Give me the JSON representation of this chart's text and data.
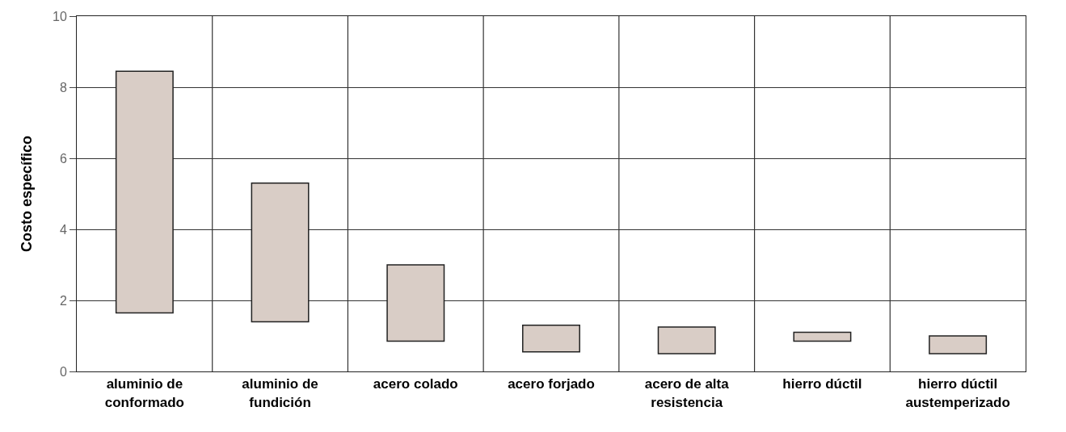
{
  "chart_data": {
    "type": "bar",
    "ylabel": "Costo específico",
    "categories": [
      "aluminio de\nconformado",
      "aluminio de\nfundición",
      "acero colado",
      "acero forjado",
      "acero de alta\nresistencia",
      "hierro dúctil",
      "hierro dúctil\naustemperizado"
    ],
    "base": [
      1.65,
      1.4,
      0.85,
      0.55,
      0.5,
      0.85,
      0.5
    ],
    "values": [
      6.8,
      3.9,
      2.15,
      0.75,
      0.75,
      0.25,
      0.5
    ],
    "color": "#d9cdc6",
    "ylim": [
      0,
      10
    ],
    "yticks": [
      0,
      2,
      4,
      6,
      8,
      10
    ],
    "grid": true
  }
}
